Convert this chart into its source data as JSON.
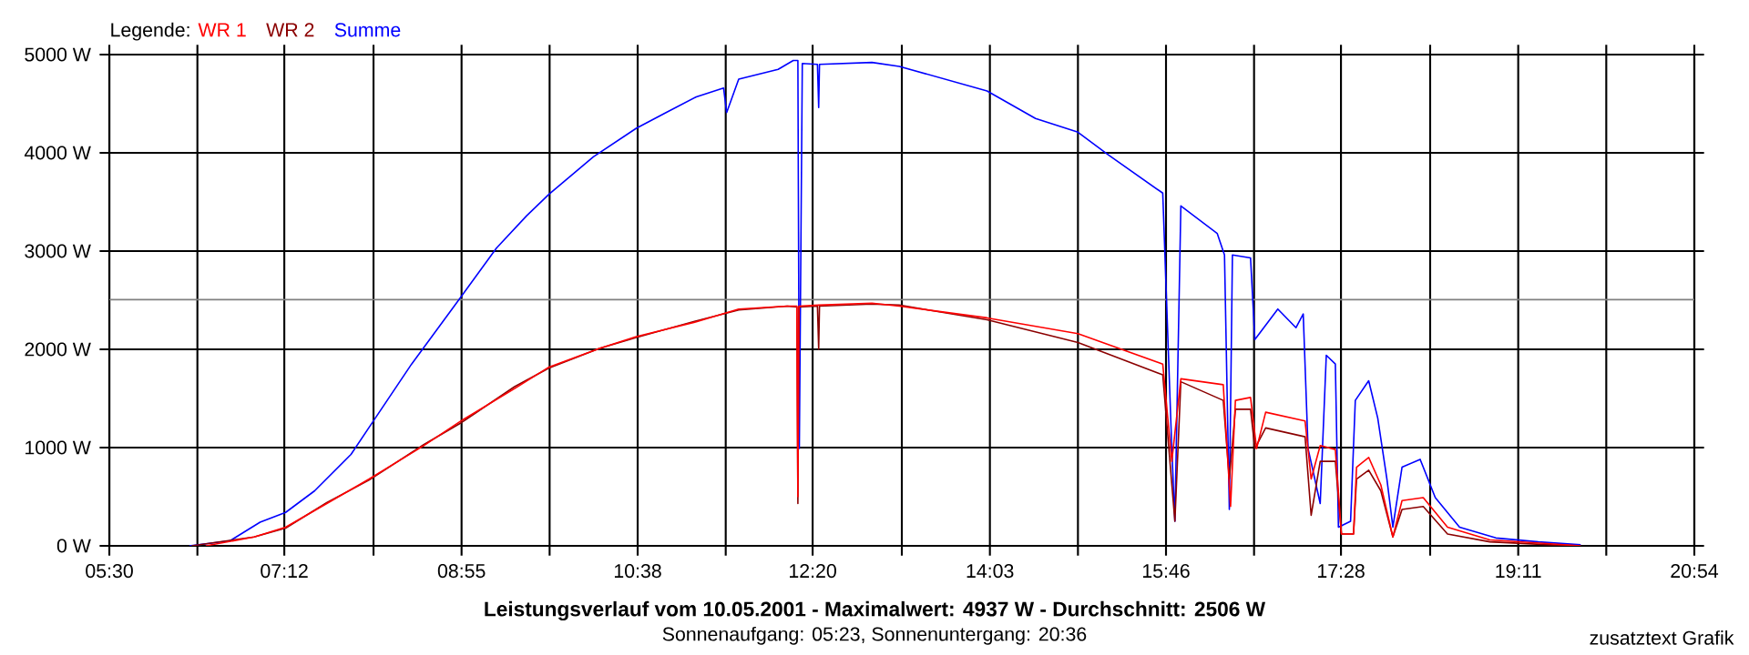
{
  "chart_data": {
    "type": "line",
    "title": "Leistungsverlauf vom 10.05.2001 - Maximalwert: 4937 W - Durchschnitt: 2506 W",
    "subtitle": "Sonnenaufgang: 05:23, Sonnenuntergang: 20:36",
    "annotations": [
      "zusatztext Grafik"
    ],
    "legend_title": "Legende:",
    "legend": "top left",
    "grid": true,
    "xlim": [
      5.5,
      20.9
    ],
    "ylim": [
      0,
      5000
    ],
    "xticks": [
      {
        "value": 5.5,
        "label": "05:30"
      },
      {
        "value": 6.3556,
        "label": null
      },
      {
        "value": 7.2,
        "label": "07:12"
      },
      {
        "value": 8.0667,
        "label": null
      },
      {
        "value": 8.9222,
        "label": "08:55"
      },
      {
        "value": 9.7778,
        "label": null
      },
      {
        "value": 10.6333,
        "label": "10:38"
      },
      {
        "value": 11.4889,
        "label": null
      },
      {
        "value": 12.3333,
        "label": "12:20"
      },
      {
        "value": 13.2,
        "label": null
      },
      {
        "value": 14.0556,
        "label": "14:03"
      },
      {
        "value": 14.9111,
        "label": null
      },
      {
        "value": 15.7667,
        "label": "15:46"
      },
      {
        "value": 16.6222,
        "label": null
      },
      {
        "value": 17.4667,
        "label": "17:28"
      },
      {
        "value": 18.3333,
        "label": null
      },
      {
        "value": 19.1889,
        "label": "19:11"
      },
      {
        "value": 20.0444,
        "label": null
      },
      {
        "value": 20.9,
        "label": "20:54"
      }
    ],
    "yticks": [
      {
        "value": 0,
        "label": "0 W"
      },
      {
        "value": 1000,
        "label": "1000 W"
      },
      {
        "value": 2000,
        "label": "2000 W"
      },
      {
        "value": 3000,
        "label": "3000 W"
      },
      {
        "value": 4000,
        "label": "4000 W"
      },
      {
        "value": 5000,
        "label": "5000 W"
      }
    ],
    "ref_lines": [
      {
        "axis": "y",
        "value": 2506,
        "color": "#808080"
      }
    ],
    "series": [
      {
        "name": "WR 1",
        "color": "#ff0000",
        "x": [
          6.436,
          6.907,
          7.213,
          7.613,
          8.025,
          8.555,
          8.914,
          9.438,
          9.773,
          10.262,
          10.62,
          11.203,
          11.615,
          12.086,
          12.18,
          12.19,
          12.2,
          12.392,
          12.91,
          13.175,
          14.028,
          14.911,
          15.735,
          15.823,
          15.911,
          16.323,
          16.394,
          16.441,
          16.588,
          16.647,
          16.735,
          17.118,
          17.177,
          17.265,
          17.412,
          17.471,
          17.589,
          17.618,
          17.736,
          17.854,
          17.971,
          18.06,
          18.266,
          18.502,
          18.913,
          19.502,
          19.796
        ],
        "values": [
          0,
          90,
          190,
          430,
          680,
          1020,
          1270,
          1600,
          1820,
          2010,
          2130,
          2280,
          2410,
          2440,
          2440,
          500,
          2440,
          2450,
          2470,
          2440,
          2320,
          2160,
          1850,
          860,
          1700,
          1640,
          400,
          1480,
          1510,
          990,
          1360,
          1270,
          680,
          1020,
          980,
          120,
          120,
          800,
          900,
          620,
          90,
          460,
          490,
          190,
          60,
          20,
          0
        ]
      },
      {
        "name": "WR 2",
        "color": "#8b0000",
        "x": [
          6.3,
          6.907,
          7.213,
          7.613,
          8.025,
          8.555,
          8.914,
          9.438,
          9.773,
          10.262,
          10.62,
          11.203,
          11.615,
          12.086,
          12.18,
          12.19,
          12.2,
          12.38,
          12.392,
          12.4,
          12.91,
          13.175,
          14.028,
          14.911,
          15.735,
          15.853,
          15.911,
          16.323,
          16.382,
          16.441,
          16.588,
          16.63,
          16.735,
          17.118,
          17.177,
          17.265,
          17.412,
          17.471,
          17.589,
          17.618,
          17.736,
          17.854,
          17.971,
          18.06,
          18.266,
          18.502,
          18.913,
          19.502,
          19.796
        ],
        "values": [
          0,
          90,
          180,
          440,
          670,
          1030,
          1250,
          1620,
          1810,
          2010,
          2120,
          2290,
          2400,
          2440,
          2430,
          430,
          2430,
          2440,
          2000,
          2440,
          2460,
          2450,
          2300,
          2070,
          1740,
          250,
          1670,
          1480,
          680,
          1390,
          1390,
          990,
          1200,
          1110,
          310,
          860,
          860,
          120,
          120,
          680,
          770,
          560,
          90,
          370,
          400,
          120,
          40,
          10,
          0
        ]
      },
      {
        "name": "Summe",
        "color": "#0000ff",
        "x": [
          6.277,
          6.67,
          6.965,
          7.213,
          7.495,
          7.848,
          8.084,
          8.437,
          8.914,
          9.261,
          9.555,
          9.773,
          10.203,
          10.62,
          10.909,
          11.203,
          11.468,
          11.498,
          11.615,
          11.998,
          12.145,
          12.19,
          12.204,
          12.233,
          12.38,
          12.392,
          12.4,
          12.91,
          13.175,
          14.028,
          14.499,
          14.911,
          15.205,
          15.735,
          15.823,
          15.853,
          15.911,
          16.264,
          16.335,
          16.382,
          16.412,
          16.588,
          16.63,
          16.853,
          17.03,
          17.1,
          17.147,
          17.265,
          17.324,
          17.412,
          17.442,
          17.56,
          17.606,
          17.736,
          17.824,
          17.913,
          17.971,
          18.06,
          18.236,
          18.383,
          18.619,
          18.972,
          19.384,
          19.796
        ],
        "values": [
          0,
          50,
          240,
          340,
          560,
          930,
          1300,
          1850,
          2530,
          3030,
          3360,
          3580,
          3960,
          4250,
          4410,
          4570,
          4660,
          4410,
          4750,
          4850,
          4940,
          4940,
          990,
          4910,
          4900,
          4460,
          4900,
          4920,
          4880,
          4630,
          4350,
          4210,
          3980,
          3590,
          990,
          250,
          3460,
          3180,
          2960,
          370,
          2960,
          2930,
          2100,
          2410,
          2220,
          2360,
          990,
          430,
          1940,
          1850,
          190,
          250,
          1480,
          1680,
          1300,
          680,
          190,
          800,
          880,
          490,
          190,
          80,
          40,
          10
        ]
      }
    ]
  }
}
